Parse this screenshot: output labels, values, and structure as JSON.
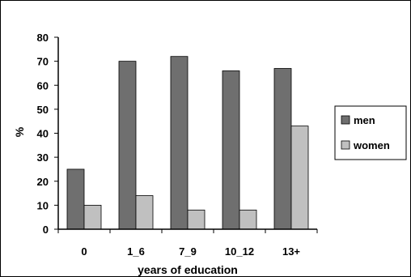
{
  "chart_data": {
    "type": "bar",
    "categories": [
      "0",
      "1_6",
      "7_9",
      "10_12",
      "13+"
    ],
    "series": [
      {
        "name": "men",
        "values": [
          25,
          70,
          72,
          66,
          67
        ],
        "color": "#6f6f6f"
      },
      {
        "name": "women",
        "values": [
          10,
          14,
          8,
          8,
          43
        ],
        "color": "#c0c0c0"
      }
    ],
    "xlabel": "years of education",
    "ylabel": "%",
    "ylim": [
      0,
      80
    ],
    "yticks": [
      "0",
      "10",
      "20",
      "30",
      "40",
      "50",
      "60",
      "70",
      "80"
    ],
    "grid": false,
    "legend": "right"
  }
}
